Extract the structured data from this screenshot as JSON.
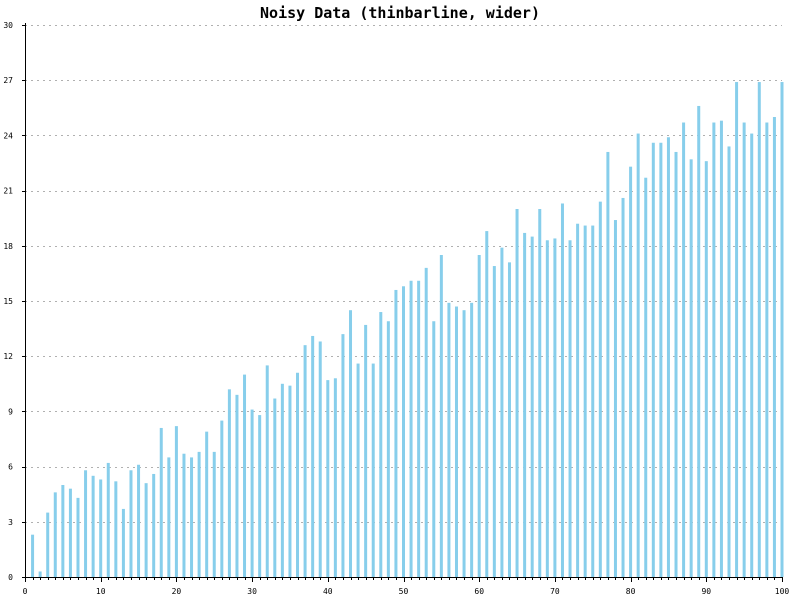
{
  "chart_data": {
    "type": "bar",
    "title": "Noisy Data (thinbarline, wider)",
    "xlabel": "",
    "ylabel": "",
    "xlim": [
      0,
      100
    ],
    "ylim": [
      0,
      30
    ],
    "x_ticks": [
      0,
      10,
      20,
      30,
      40,
      50,
      60,
      70,
      80,
      90,
      100
    ],
    "y_ticks": [
      0,
      3,
      6,
      9,
      12,
      15,
      18,
      21,
      24,
      27,
      30
    ],
    "grid": {
      "horizontal": true,
      "vertical": false,
      "style": "dotted"
    },
    "bar_color": "#87ceeb",
    "x": [
      1,
      2,
      3,
      4,
      5,
      6,
      7,
      8,
      9,
      10,
      11,
      12,
      13,
      14,
      15,
      16,
      17,
      18,
      19,
      20,
      21,
      22,
      23,
      24,
      25,
      26,
      27,
      28,
      29,
      30,
      31,
      32,
      33,
      34,
      35,
      36,
      37,
      38,
      39,
      40,
      41,
      42,
      43,
      44,
      45,
      46,
      47,
      48,
      49,
      50,
      51,
      52,
      53,
      54,
      55,
      56,
      57,
      58,
      59,
      60,
      61,
      62,
      63,
      64,
      65,
      66,
      67,
      68,
      69,
      70,
      71,
      72,
      73,
      74,
      75,
      76,
      77,
      78,
      79,
      80,
      81,
      82,
      83,
      84,
      85,
      86,
      87,
      88,
      89,
      90,
      91,
      92,
      93,
      94,
      95,
      96,
      97,
      98,
      99,
      100
    ],
    "values": [
      2.3,
      0.3,
      3.5,
      4.6,
      5.0,
      4.8,
      4.3,
      5.8,
      5.5,
      5.3,
      6.2,
      5.2,
      3.7,
      5.8,
      6.1,
      5.1,
      5.6,
      8.1,
      6.5,
      8.2,
      6.7,
      6.5,
      6.8,
      7.9,
      6.8,
      8.5,
      10.2,
      9.9,
      11.0,
      9.1,
      8.8,
      11.5,
      9.7,
      10.5,
      10.4,
      11.1,
      12.6,
      13.1,
      12.8,
      10.7,
      10.8,
      13.2,
      14.5,
      11.6,
      13.7,
      11.6,
      14.4,
      13.9,
      15.6,
      15.8,
      16.1,
      16.1,
      16.8,
      13.9,
      17.5,
      14.9,
      14.7,
      14.5,
      14.9,
      17.5,
      18.8,
      16.9,
      17.9,
      17.1,
      20.0,
      18.7,
      18.5,
      20.0,
      18.3,
      18.4,
      20.3,
      18.3,
      19.2,
      19.1,
      19.1,
      20.4,
      23.1,
      19.4,
      20.6,
      22.3,
      24.1,
      21.7,
      23.6,
      23.6,
      23.9,
      23.1,
      24.7,
      22.7,
      25.6,
      22.6,
      24.7,
      24.8,
      23.4,
      26.9,
      24.7,
      24.1,
      26.9,
      24.7,
      25.0,
      26.9
    ]
  }
}
